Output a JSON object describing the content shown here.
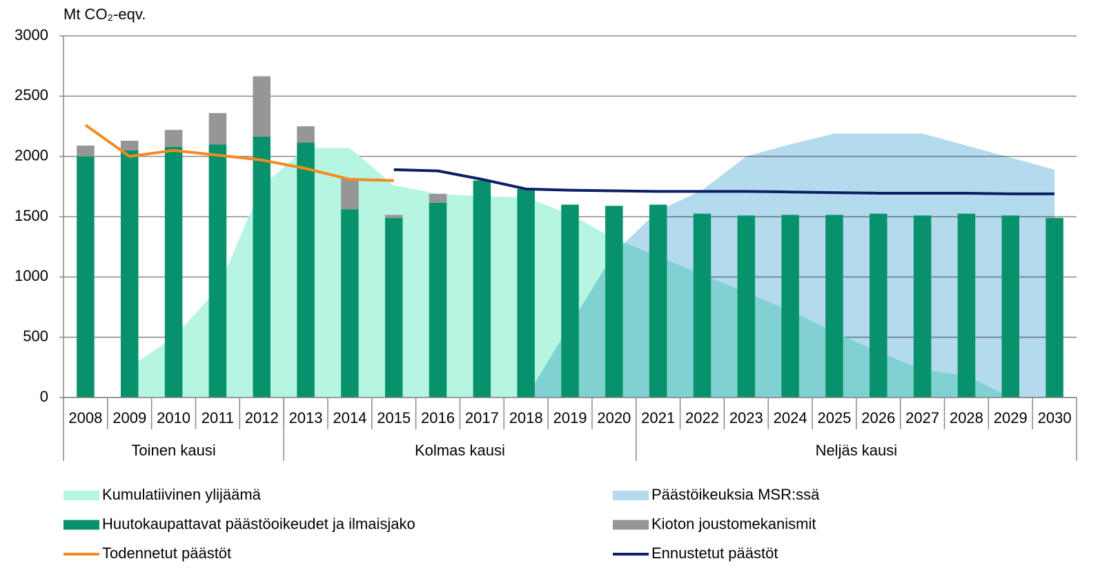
{
  "chart_data": {
    "type": "bar",
    "y_axis_label": "Mt CO₂-eqv.",
    "categories": [
      "2008",
      "2009",
      "2010",
      "2011",
      "2012",
      "2013",
      "2014",
      "2015",
      "2016",
      "2017",
      "2018",
      "2019",
      "2020",
      "2021",
      "2022",
      "2023",
      "2024",
      "2025",
      "2026",
      "2027",
      "2028",
      "2029",
      "2030"
    ],
    "groups": [
      {
        "label": "Toinen kausi",
        "from": "2008",
        "to": "2012"
      },
      {
        "label": "Kolmas kausi",
        "from": "2013",
        "to": "2020"
      },
      {
        "label": "Neljäs kausi",
        "from": "2021",
        "to": "2030"
      }
    ],
    "ylim": [
      0,
      3000
    ],
    "yticks": [
      0,
      500,
      1000,
      1500,
      2000,
      2500,
      3000
    ],
    "grid": true,
    "legend": "bottom",
    "series": [
      {
        "name": "Kumulatiivinen ylijäämä",
        "type": "area",
        "color": "#b6f5e1",
        "values": [
          null,
          250,
          500,
          900,
          1750,
          2070,
          2070,
          1760,
          1690,
          1670,
          1660,
          1520,
          1320,
          1170,
          1020,
          870,
          720,
          540,
          380,
          230,
          180,
          0,
          null
        ]
      },
      {
        "name": "Päästöikeuksia MSR:ssä",
        "type": "area",
        "color": "#b4daee",
        "values": [
          null,
          null,
          null,
          null,
          null,
          null,
          null,
          null,
          null,
          null,
          0,
          600,
          1200,
          1550,
          1720,
          2000,
          2100,
          2190,
          2190,
          2190,
          2090,
          1990,
          1890
        ]
      },
      {
        "name": "Huutokaupattavat päästöoikeudet ja ilmaisjako",
        "type": "bar",
        "color": "#08926c",
        "values": [
          2000,
          2050,
          2080,
          2100,
          2165,
          2115,
          1560,
          1490,
          1615,
          1800,
          1730,
          1600,
          1590,
          1600,
          1525,
          1510,
          1515,
          1515,
          1525,
          1510,
          1525,
          1510,
          1490
        ]
      },
      {
        "name": "Kioton joustomekanismit",
        "type": "bar",
        "color": "#969696",
        "values": [
          90,
          80,
          140,
          260,
          500,
          135,
          255,
          25,
          75,
          0,
          0,
          0,
          0,
          0,
          0,
          0,
          0,
          0,
          0,
          0,
          0,
          0,
          0
        ]
      },
      {
        "name": "Todennetut päästöt",
        "type": "line",
        "color": "#f58a1f",
        "values": [
          2260,
          2000,
          2050,
          2010,
          1970,
          1900,
          1810,
          1800,
          null,
          null,
          null,
          null,
          null,
          null,
          null,
          null,
          null,
          null,
          null,
          null,
          null,
          null,
          null
        ]
      },
      {
        "name": "Ennustetut päästöt",
        "type": "line",
        "color": "#0c1f66",
        "values": [
          null,
          null,
          null,
          null,
          null,
          null,
          null,
          1890,
          1880,
          1810,
          1730,
          1720,
          1715,
          1710,
          1710,
          1710,
          1705,
          1700,
          1695,
          1695,
          1695,
          1690,
          1690
        ]
      }
    ]
  }
}
